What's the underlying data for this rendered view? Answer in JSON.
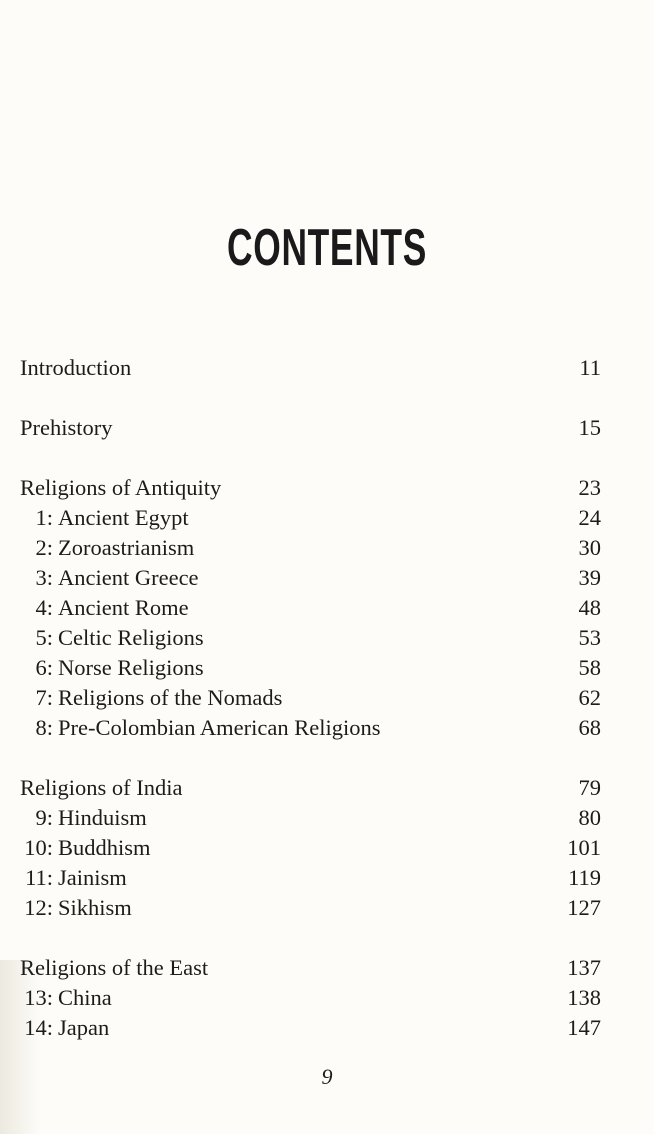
{
  "title": "CONTENTS",
  "groups": [
    {
      "entries": [
        {
          "num": "",
          "title": "Introduction",
          "page": "11"
        }
      ]
    },
    {
      "entries": [
        {
          "num": "",
          "title": "Prehistory",
          "page": "15"
        }
      ]
    },
    {
      "entries": [
        {
          "num": "",
          "title": "Religions of Antiquity",
          "page": "23"
        },
        {
          "num": "1:",
          "title": "Ancient Egypt",
          "page": "24"
        },
        {
          "num": "2:",
          "title": "Zoroastrianism",
          "page": "30"
        },
        {
          "num": "3:",
          "title": "Ancient Greece",
          "page": "39"
        },
        {
          "num": "4:",
          "title": "Ancient Rome",
          "page": "48"
        },
        {
          "num": "5:",
          "title": "Celtic Religions",
          "page": "53"
        },
        {
          "num": "6:",
          "title": "Norse Religions",
          "page": "58"
        },
        {
          "num": "7:",
          "title": "Religions of the Nomads",
          "page": "62"
        },
        {
          "num": "8:",
          "title": "Pre-Colombian American Religions",
          "page": "68"
        }
      ]
    },
    {
      "entries": [
        {
          "num": "",
          "title": "Religions of India",
          "page": "79"
        },
        {
          "num": "9:",
          "title": "Hinduism",
          "page": "80"
        },
        {
          "num": "10:",
          "title": "Buddhism",
          "page": "101"
        },
        {
          "num": "11:",
          "title": "Jainism",
          "page": "119"
        },
        {
          "num": "12:",
          "title": "Sikhism",
          "page": "127"
        }
      ]
    },
    {
      "entries": [
        {
          "num": "",
          "title": "Religions of the East",
          "page": "137"
        },
        {
          "num": "13:",
          "title": "China",
          "page": "138"
        },
        {
          "num": "14:",
          "title": "Japan",
          "page": "147"
        }
      ]
    }
  ],
  "folio": "9"
}
